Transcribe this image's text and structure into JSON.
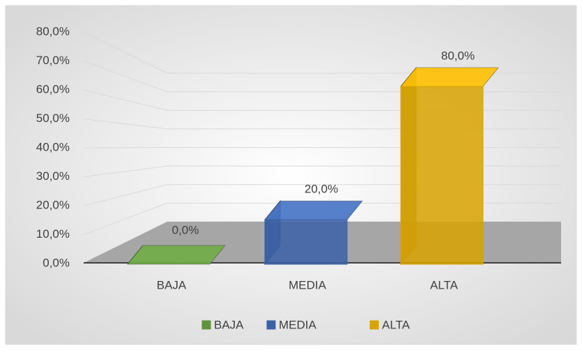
{
  "chart_data": {
    "type": "bar3d",
    "categories": [
      "BAJA",
      "MEDIA",
      "ALTA"
    ],
    "values": [
      0,
      20,
      80
    ],
    "value_labels": [
      "0,0%",
      "20,0%",
      "80,0%"
    ],
    "colors": [
      "#70ad47",
      "#4472c4",
      "#ffc000"
    ],
    "ylim": [
      0,
      80
    ],
    "yticks": [
      {
        "value": 0,
        "label": "0,0%"
      },
      {
        "value": 10,
        "label": "10,0%"
      },
      {
        "value": 20,
        "label": "20,0%"
      },
      {
        "value": 30,
        "label": "30,0%"
      },
      {
        "value": 40,
        "label": "40,0%"
      },
      {
        "value": 50,
        "label": "50,0%"
      },
      {
        "value": 60,
        "label": "60,0%"
      },
      {
        "value": 70,
        "label": "70,0%"
      },
      {
        "value": 80,
        "label": "80,0%"
      }
    ],
    "grid": true,
    "legend": "bottom"
  }
}
